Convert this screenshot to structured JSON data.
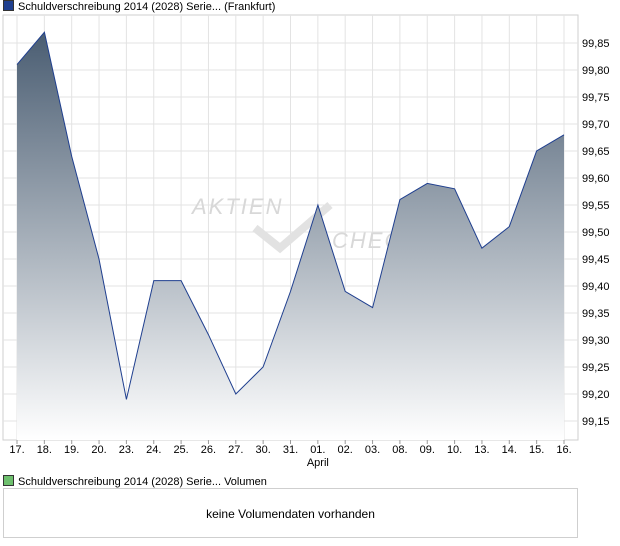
{
  "legend": {
    "price_label": "Schuldverschreibung 2014 (2028) Serie... (Frankfurt)",
    "volume_label": "Schuldverschreibung 2014 (2028) Serie... Volumen",
    "price_color": "#1f3f8f",
    "volume_color": "#6dbf6d"
  },
  "watermark": {
    "line1": "AKTIEN",
    "line2": "CHECK"
  },
  "volume": {
    "message": "keine Volumendaten vorhanden"
  },
  "chart_data": {
    "type": "area",
    "x": [
      "17.",
      "18.",
      "19.",
      "20.",
      "23.",
      "24.",
      "25.",
      "26.",
      "27.",
      "30.",
      "31.",
      "01.",
      "02.",
      "03.",
      "08.",
      "09.",
      "10.",
      "13.",
      "14.",
      "15.",
      "16."
    ],
    "x_month_labels": [
      {
        "at": "01.",
        "label": "April"
      }
    ],
    "series": [
      {
        "values": [
          99.81,
          99.87,
          99.64,
          99.45,
          99.19,
          99.41,
          99.41,
          99.31,
          99.2,
          99.25,
          99.39,
          99.55,
          99.39,
          99.36,
          99.56,
          99.59,
          99.58,
          99.47,
          99.51,
          99.65,
          99.68
        ]
      }
    ],
    "yticks": [
      "99,85",
      "99,80",
      "99,75",
      "99,70",
      "99,65",
      "99,60",
      "99,55",
      "99,50",
      "99,45",
      "99,40",
      "99,35",
      "99,30",
      "99,25",
      "99,20",
      "99,15"
    ],
    "ylim": [
      99.115,
      99.895
    ],
    "grid": true,
    "line_color": "#1f3f8f",
    "fill_top_color": "#4a5d72",
    "fill_bottom_color": "#ffffff"
  }
}
